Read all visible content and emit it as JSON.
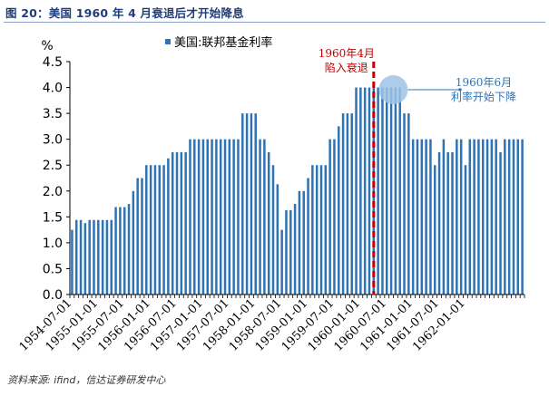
{
  "title": "图 20：美国 1960 年 4 月衰退后才开始降息",
  "source": "资料来源: ifind，信达证券研发中心",
  "chart_data": {
    "type": "bar",
    "ylabel": "%",
    "ylim": [
      0,
      4.5
    ],
    "yticks": [
      "0.0",
      "0.5",
      "1.0",
      "1.5",
      "2.0",
      "2.5",
      "3.0",
      "3.5",
      "4.0",
      "4.5"
    ],
    "xtick_labels": [
      "1954-07-01",
      "1955-01-01",
      "1955-07-01",
      "1956-01-01",
      "1956-07-01",
      "1957-01-01",
      "1957-07-01",
      "1958-01-01",
      "1958-07-01",
      "1959-01-01",
      "1959-07-01",
      "1960-01-01",
      "1960-07-01",
      "1961-01-01",
      "1961-07-01",
      "1962-01-01"
    ],
    "series": [
      {
        "name": "美国:联邦基金利率",
        "color": "#2e74b5",
        "start": "1954-07",
        "frequency": "monthly",
        "values": [
          1.25,
          1.44,
          1.44,
          1.38,
          1.44,
          1.44,
          1.44,
          1.44,
          1.44,
          1.44,
          1.69,
          1.69,
          1.69,
          1.75,
          2.0,
          2.25,
          2.25,
          2.5,
          2.5,
          2.5,
          2.5,
          2.5,
          2.63,
          2.75,
          2.75,
          2.75,
          2.75,
          3.0,
          3.0,
          3.0,
          3.0,
          3.0,
          3.0,
          3.0,
          3.0,
          3.0,
          3.0,
          3.0,
          3.0,
          3.5,
          3.5,
          3.5,
          3.5,
          3.0,
          3.0,
          2.75,
          2.5,
          2.13,
          1.25,
          1.63,
          1.63,
          1.75,
          2.0,
          2.0,
          2.25,
          2.5,
          2.5,
          2.5,
          2.5,
          3.0,
          3.0,
          3.25,
          3.5,
          3.5,
          3.5,
          4.0,
          4.0,
          4.0,
          4.0,
          4.0,
          4.0,
          4.0,
          4.0,
          4.0,
          4.0,
          4.0,
          3.5,
          3.5,
          3.0,
          3.0,
          3.0,
          3.0,
          3.0,
          2.5,
          2.75,
          3.0,
          2.75,
          2.75,
          3.0,
          3.0,
          2.5,
          3.0,
          3.0,
          3.0,
          3.0,
          3.0,
          3.0,
          3.0,
          2.75,
          3.0,
          3.0,
          3.0,
          3.0,
          3.0
        ]
      }
    ],
    "annotations": [
      {
        "text_line1": "1960年4月",
        "text_line2": "陷入衰退",
        "at": "1960-04",
        "color": "#c00000",
        "style": "dashed-vertical-line"
      },
      {
        "text_line1": "1960年6月",
        "text_line2": "利率开始下降",
        "at": "1960-06",
        "color": "#2e74b5",
        "style": "circle-marker"
      }
    ],
    "legend_position": "top-center",
    "grid": false
  }
}
